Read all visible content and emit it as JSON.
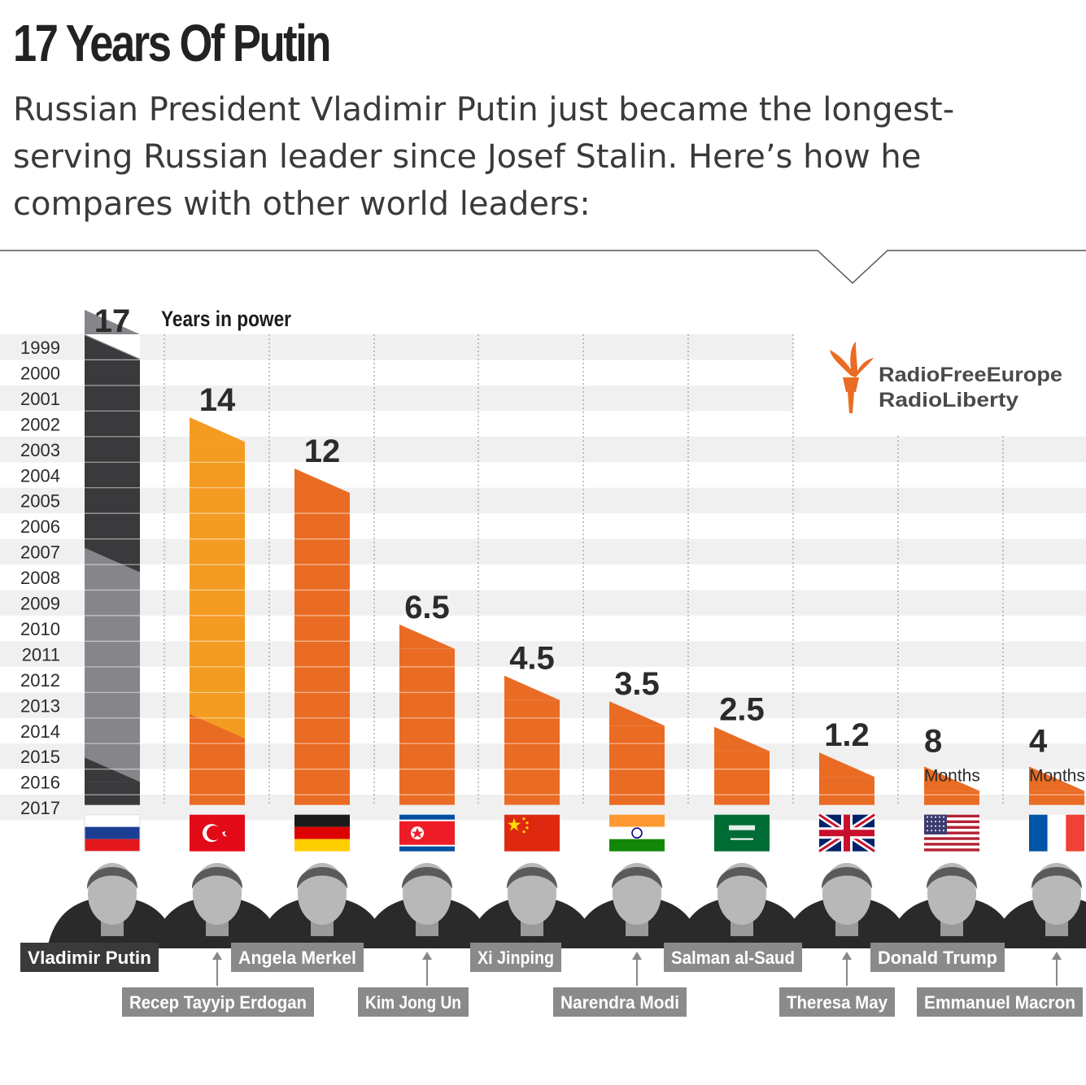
{
  "title": "17 Years Of Putin",
  "subtitle": "Russian President Vladimir Putin just became the longest-serving Russian leader since Josef Stalin. Here’s how he compares with other world leaders:",
  "logo": {
    "line1": "RadioFreeEurope",
    "line2": "RadioLiberty"
  },
  "colors": {
    "orange": "#ea6c24",
    "light_orange": "#f49b21",
    "dark": "#3a3a3c",
    "gray": "#86868a",
    "stripe": "#f0f0f0"
  },
  "chart_data": {
    "type": "bar",
    "title": "17 Years Of Putin",
    "axis_label": "Years in power",
    "years": [
      "1999",
      "2000",
      "2001",
      "2002",
      "2003",
      "2004",
      "2005",
      "2006",
      "2007",
      "2008",
      "2009",
      "2010",
      "2011",
      "2012",
      "2013",
      "2014",
      "2015",
      "2016",
      "2017"
    ],
    "series": [
      {
        "leader": "Vladimir Putin",
        "years_in_power": 17,
        "value_label": "17",
        "unit_label": "",
        "flag": "russia",
        "segments": [
          {
            "from": 1999.0,
            "to": 2000.0,
            "color": "gray"
          },
          {
            "from": 2000.0,
            "to": 2008.3,
            "color": "dark"
          },
          {
            "from": 2008.3,
            "to": 2016.5,
            "color": "gray"
          },
          {
            "from": 2016.5,
            "to": 2017.4,
            "color": "dark"
          }
        ]
      },
      {
        "leader": "Recep Tayyip Erdogan",
        "years_in_power": 14,
        "value_label": "14",
        "unit_label": "",
        "flag": "turkey",
        "segments": [
          {
            "from": 2003.2,
            "to": 2014.8,
            "color": "light_orange"
          },
          {
            "from": 2014.8,
            "to": 2017.4,
            "color": "orange"
          }
        ]
      },
      {
        "leader": "Angela Merkel",
        "years_in_power": 12,
        "value_label": "12",
        "unit_label": "",
        "flag": "germany",
        "segments": [
          {
            "from": 2005.2,
            "to": 2017.4,
            "color": "orange"
          }
        ]
      },
      {
        "leader": "Kim Jong Un",
        "years_in_power": 6.5,
        "value_label": "6.5",
        "unit_label": "",
        "flag": "north-korea",
        "segments": [
          {
            "from": 2011.3,
            "to": 2017.4,
            "color": "orange"
          }
        ]
      },
      {
        "leader": "Xi Jinping",
        "years_in_power": 4.5,
        "value_label": "4.5",
        "unit_label": "",
        "flag": "china",
        "segments": [
          {
            "from": 2013.3,
            "to": 2017.4,
            "color": "orange"
          }
        ]
      },
      {
        "leader": "Narendra Modi",
        "years_in_power": 3.5,
        "value_label": "3.5",
        "unit_label": "",
        "flag": "india",
        "segments": [
          {
            "from": 2014.3,
            "to": 2017.4,
            "color": "orange"
          }
        ]
      },
      {
        "leader": "Salman al-Saud",
        "years_in_power": 2.5,
        "value_label": "2.5",
        "unit_label": "",
        "flag": "saudi-arabia",
        "segments": [
          {
            "from": 2015.3,
            "to": 2017.4,
            "color": "orange"
          }
        ]
      },
      {
        "leader": "Theresa May",
        "years_in_power": 1.2,
        "value_label": "1.2",
        "unit_label": "",
        "flag": "uk",
        "segments": [
          {
            "from": 2016.3,
            "to": 2017.4,
            "color": "orange"
          }
        ]
      },
      {
        "leader": "Donald Trump",
        "years_in_power": 0.67,
        "value_label": "8",
        "unit_label": "Months",
        "flag": "usa",
        "segments": [
          {
            "from": 2016.85,
            "to": 2017.4,
            "color": "orange"
          }
        ]
      },
      {
        "leader": "Emmanuel Macron",
        "years_in_power": 0.33,
        "value_label": "4",
        "unit_label": "Months",
        "flag": "france",
        "segments": [
          {
            "from": 2016.85,
            "to": 2017.4,
            "color": "orange"
          }
        ]
      }
    ]
  }
}
